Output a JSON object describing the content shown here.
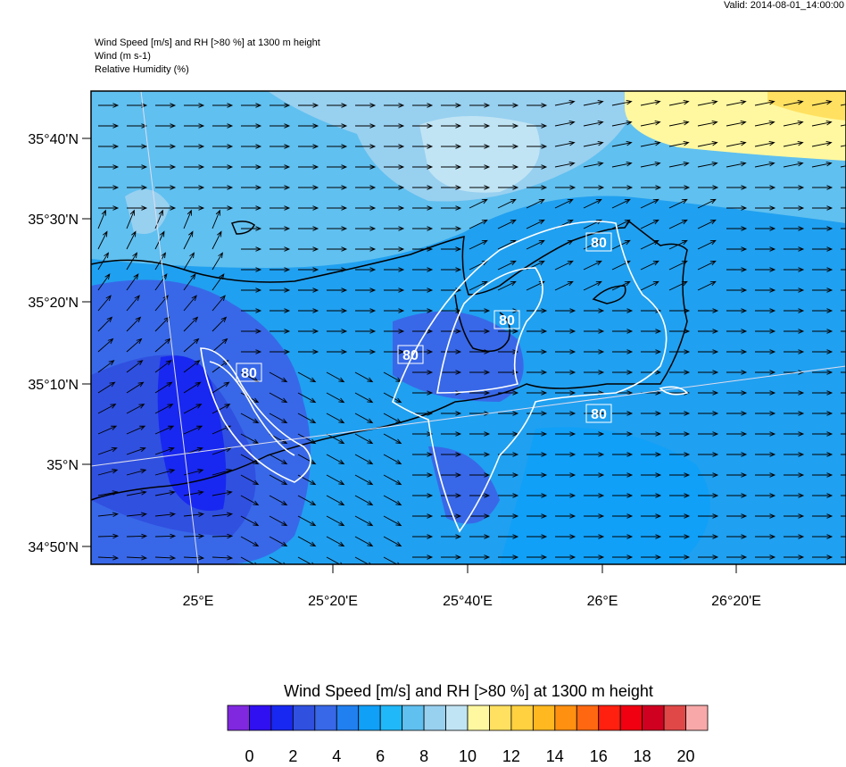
{
  "header": {
    "valid": "Valid: 2014-08-01_14:00:00",
    "lines": [
      "Wind Speed [m/s] and RH [>80 %] at 1300 m height",
      "Wind   (m s-1)",
      "Relative Humidity   (%)"
    ]
  },
  "map": {
    "lat_labels": [
      "35°40'N",
      "35°30'N",
      "35°20'N",
      "35°10'N",
      "35°N",
      "34°50'N"
    ],
    "lon_labels": [
      "25°E",
      "25°20'E",
      "25°40'E",
      "26°E",
      "26°20'E"
    ],
    "contour_labels": [
      "80",
      "80",
      "80",
      "80",
      "80"
    ]
  },
  "colorbar": {
    "title": "Wind Speed [m/s] and RH [>80 %] at 1300 m height",
    "colors": [
      "#8028e0",
      "#3010f0",
      "#1828f0",
      "#3050e0",
      "#3868e8",
      "#2080f0",
      "#10a0f8",
      "#20b8f8",
      "#60c0f0",
      "#98d0f0",
      "#c0e4f4",
      "#fff8a0",
      "#ffe060",
      "#ffd040",
      "#ffb820",
      "#ff9010",
      "#ff6810",
      "#ff2010",
      "#f00010",
      "#d00020",
      "#e04848",
      "#f8a8a8"
    ],
    "labels": [
      "0",
      "2",
      "4",
      "6",
      "8",
      "10",
      "12",
      "14",
      "16",
      "18",
      "20"
    ]
  }
}
